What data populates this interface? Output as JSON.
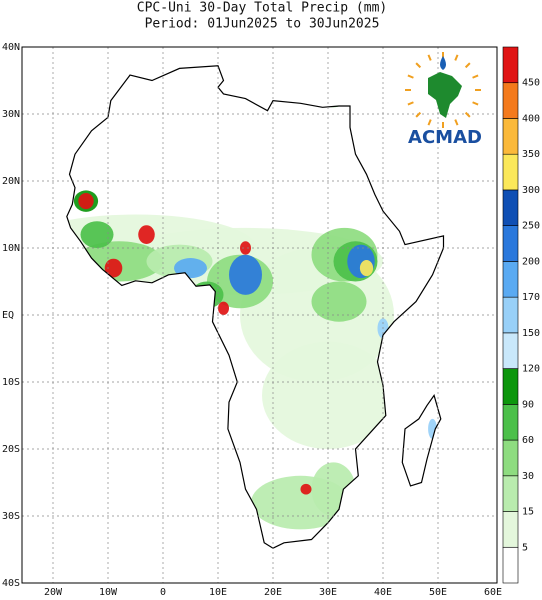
{
  "header": {
    "title": "CPC-Uni 30-Day Total Precip (mm)",
    "period": "Period: 01Jun2025 to 30Jun2025"
  },
  "map": {
    "lat_labels": [
      "40N",
      "30N",
      "20N",
      "10N",
      "EQ",
      "10S",
      "20S",
      "30S",
      "40S"
    ],
    "lon_labels": [
      "20W",
      "10W",
      "0",
      "10E",
      "20E",
      "30E",
      "40E",
      "50E",
      "60E"
    ]
  },
  "legend": {
    "levels": [
      "5",
      "15",
      "30",
      "60",
      "90",
      "120",
      "150",
      "170",
      "200",
      "250",
      "300",
      "350",
      "400",
      "450"
    ],
    "colors": [
      "#ffffff",
      "#e4f7dc",
      "#b9ecae",
      "#8edc80",
      "#4cc04a",
      "#0c960c",
      "#c9e8fb",
      "#98d0f8",
      "#5aaaf2",
      "#2a78dc",
      "#0f4fb4",
      "#fbe85a",
      "#fbb93a",
      "#f47a1c",
      "#e01414"
    ]
  },
  "logo": {
    "text": "ACMAD"
  }
}
